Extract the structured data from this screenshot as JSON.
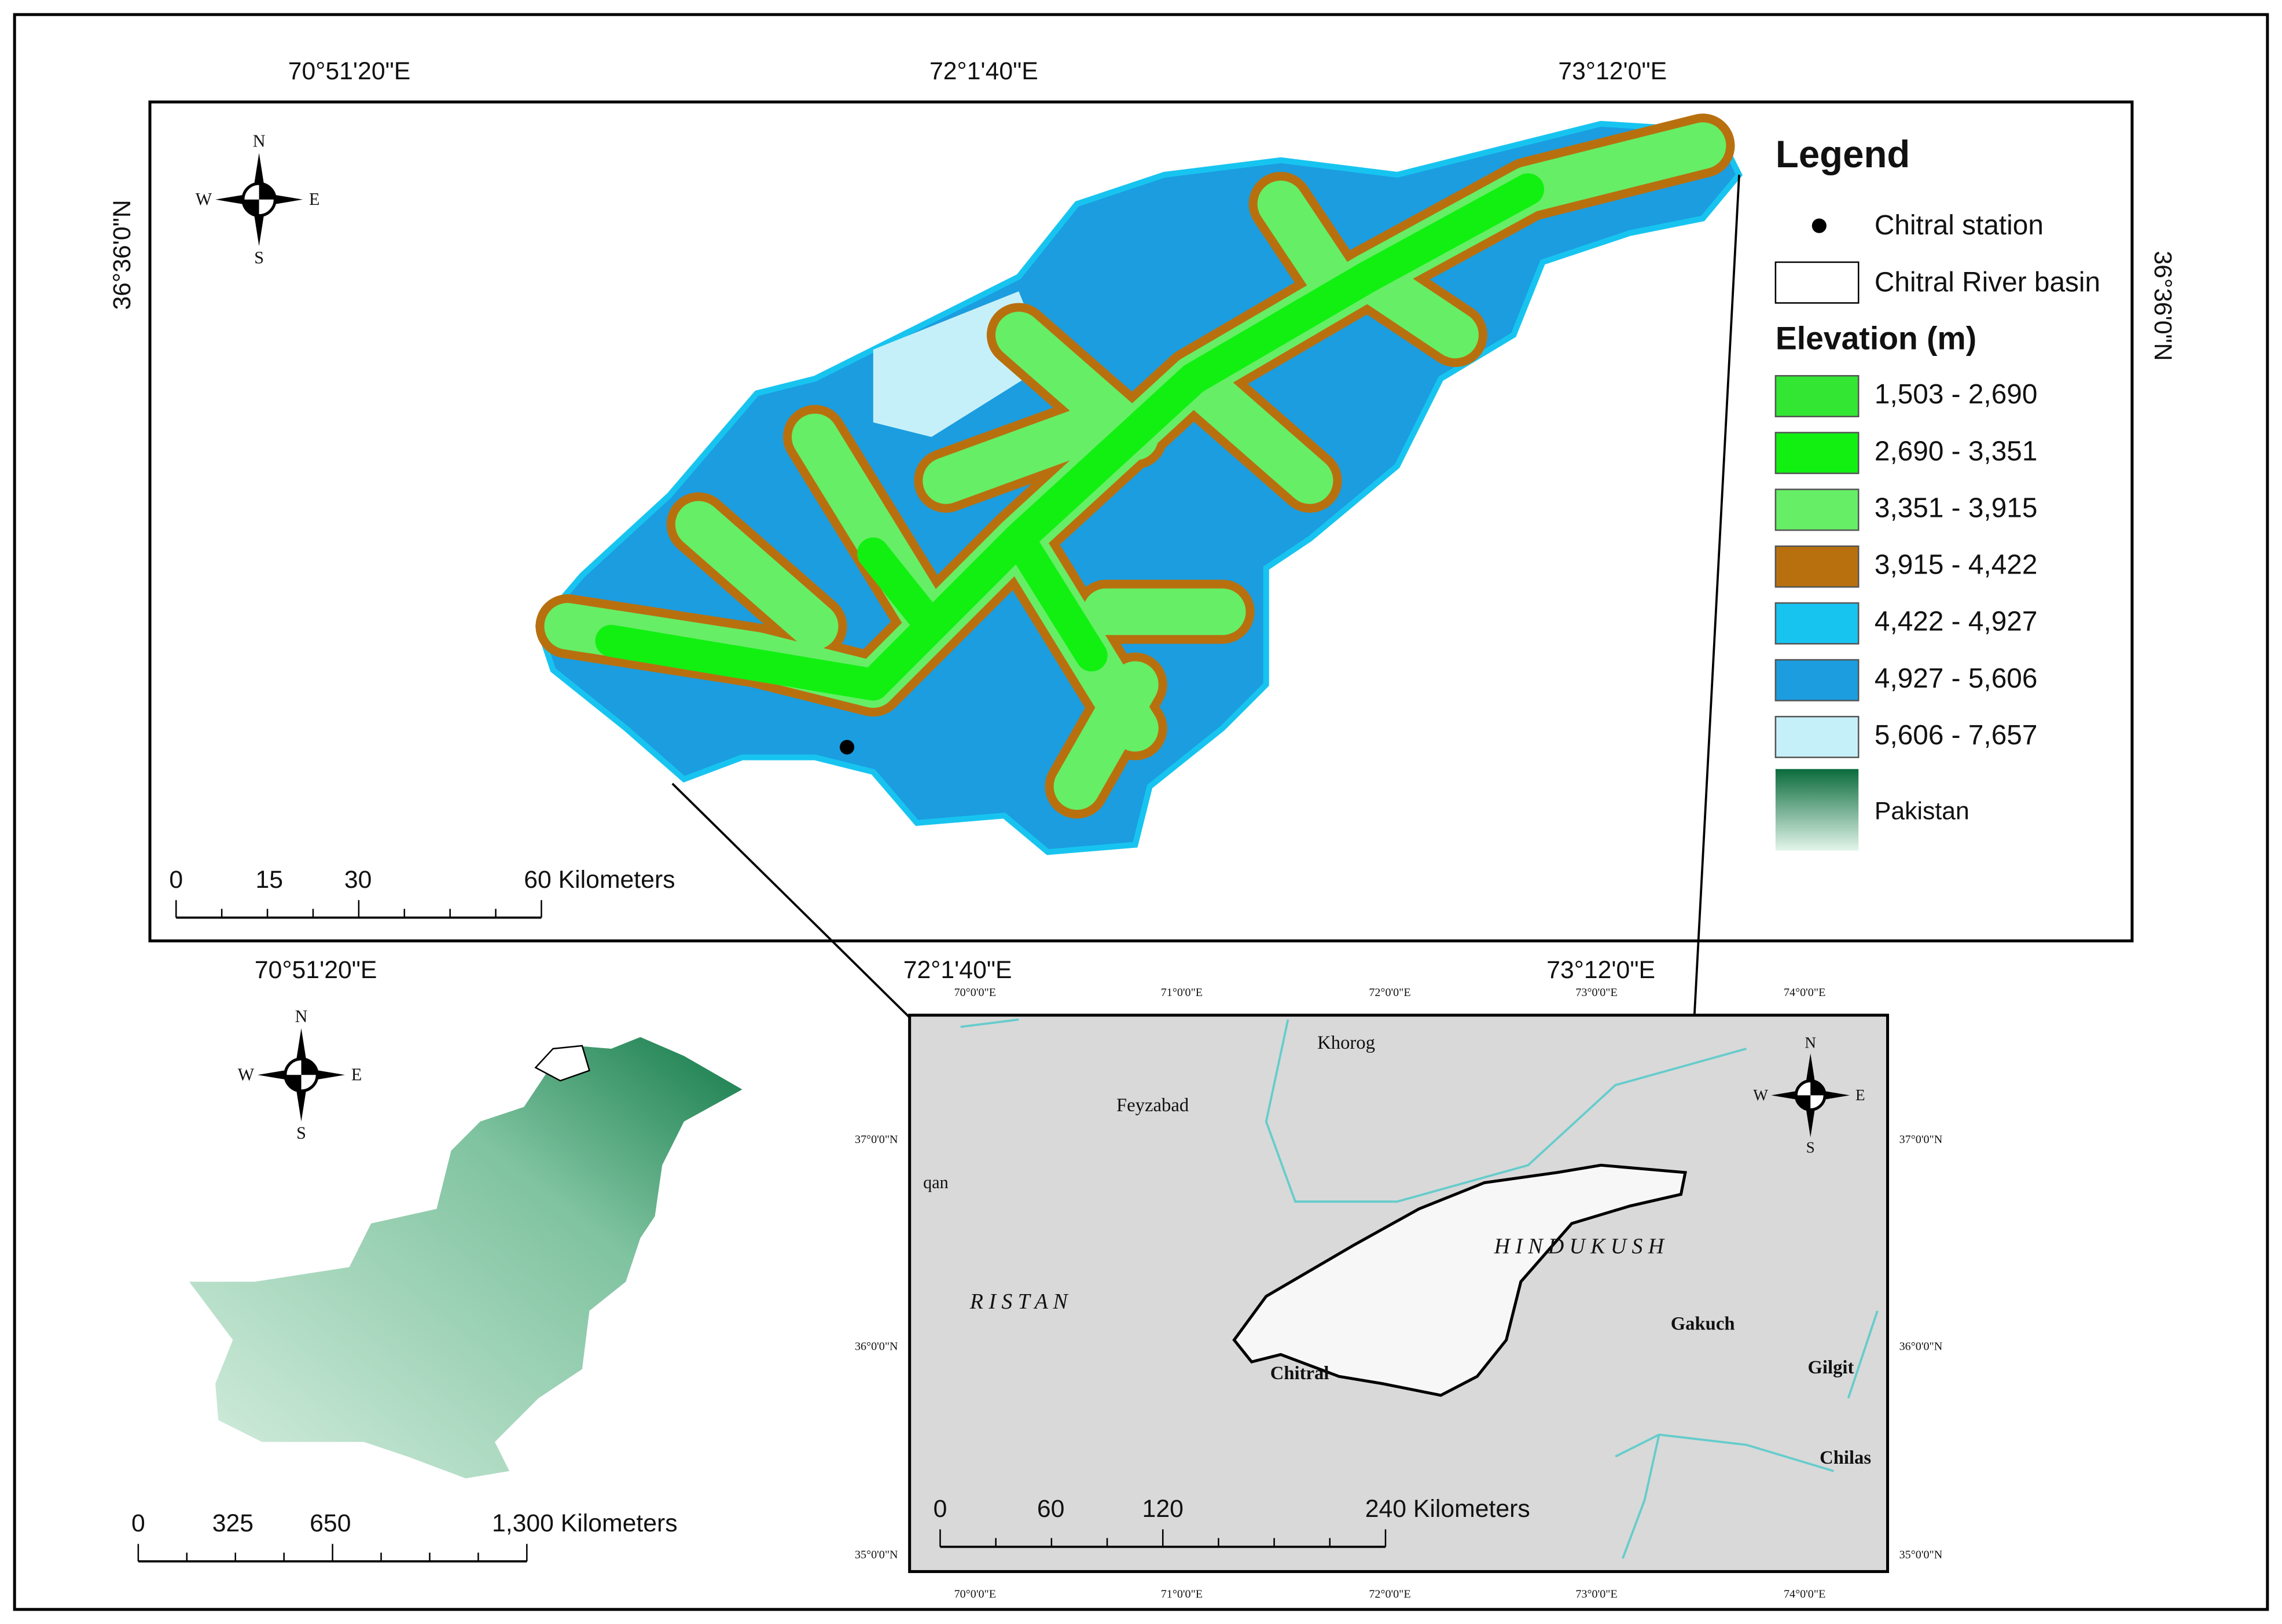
{
  "main_map": {
    "top_labels": [
      "70°51'20\"E",
      "72°1'40\"E",
      "73°12'0\"E"
    ],
    "left_label": "36°36'0\"N",
    "compass": {
      "n": "N",
      "s": "S",
      "e": "E",
      "w": "W"
    },
    "legend": {
      "title": "Legend",
      "station": "Chitral station",
      "basin": "Chitral River basin",
      "elevation_title": "Elevation (m)",
      "classes": [
        {
          "label": "1,503 - 2,690",
          "color": "#33e633"
        },
        {
          "label": "2,690 - 3,351",
          "color": "#12f012"
        },
        {
          "label": "3,351 - 3,915",
          "color": "#66ee66"
        },
        {
          "label": "3,915 - 4,422",
          "color": "#b8700f"
        },
        {
          "label": "4,422 - 4,927",
          "color": "#17c4f0"
        },
        {
          "label": "4,927 - 5,606",
          "color": "#1b9de0"
        },
        {
          "label": "5,606 - 7,657",
          "color": "#c6f0f9"
        }
      ],
      "pakistan": "Pakistan"
    },
    "scale_bar": [
      "0",
      "15",
      "30",
      "60 Kilometers"
    ]
  },
  "pakistan_map": {
    "scale_bar": [
      "0",
      "325",
      "650",
      "1,300 Kilometers"
    ]
  },
  "regional_map": {
    "x_labels": [
      "70°0'0\"E",
      "71°0'0\"E",
      "72°0'0\"E",
      "73°0'0\"E",
      "74°0'0\"E"
    ],
    "y_labels": [
      "37°0'0\"N",
      "36°0'0\"N",
      "35°0'0\"N"
    ],
    "places": [
      "Khorog",
      "Feyzabad",
      "qan",
      "R I S T A N",
      "H I N D U   K U S H",
      "Gakuch",
      "Gilgit",
      "Chitral",
      "Chilas"
    ],
    "scale_bar": [
      "0",
      "60",
      "120",
      "240 Kilometers"
    ]
  }
}
